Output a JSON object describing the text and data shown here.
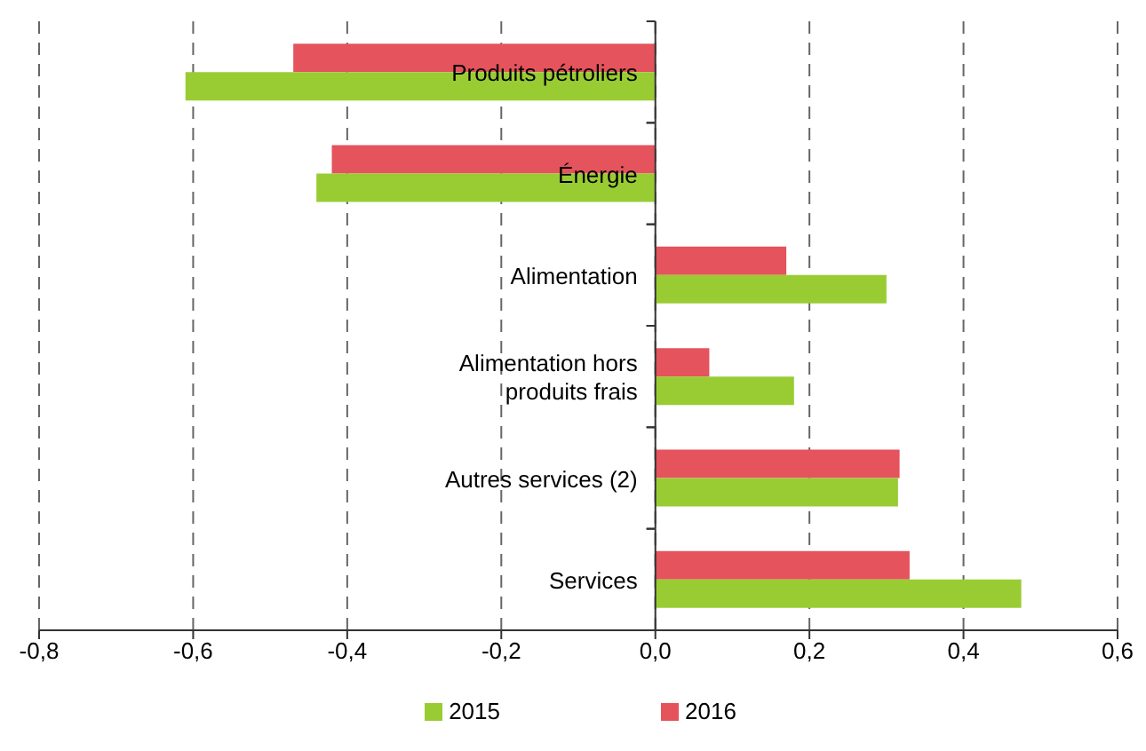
{
  "chart_data": {
    "type": "bar",
    "orientation": "horizontal",
    "categories": [
      "Produits pétroliers",
      "Énergie",
      "Alimentation",
      "Alimentation hors produits frais",
      "Autres services (2)",
      "Services"
    ],
    "series": [
      {
        "name": "2015",
        "color": "#99cc33",
        "values": [
          -0.61,
          -0.44,
          0.3,
          0.18,
          0.315,
          0.475
        ]
      },
      {
        "name": "2016",
        "color": "#e5535c",
        "values": [
          -0.47,
          -0.42,
          0.17,
          0.07,
          0.317,
          0.33
        ]
      }
    ],
    "xlim": [
      -0.8,
      0.6
    ],
    "xticks": [
      {
        "value": -0.8,
        "label": "-0,8"
      },
      {
        "value": -0.6,
        "label": "-0,6"
      },
      {
        "value": -0.4,
        "label": "-0,4"
      },
      {
        "value": -0.2,
        "label": "-0,2"
      },
      {
        "value": 0,
        "label": "0,0"
      },
      {
        "value": 0.2,
        "label": "0,2"
      },
      {
        "value": 0.4,
        "label": "0,4"
      },
      {
        "value": 0.6,
        "label": "0,6"
      }
    ],
    "grid": "x",
    "legend": "bottom"
  }
}
